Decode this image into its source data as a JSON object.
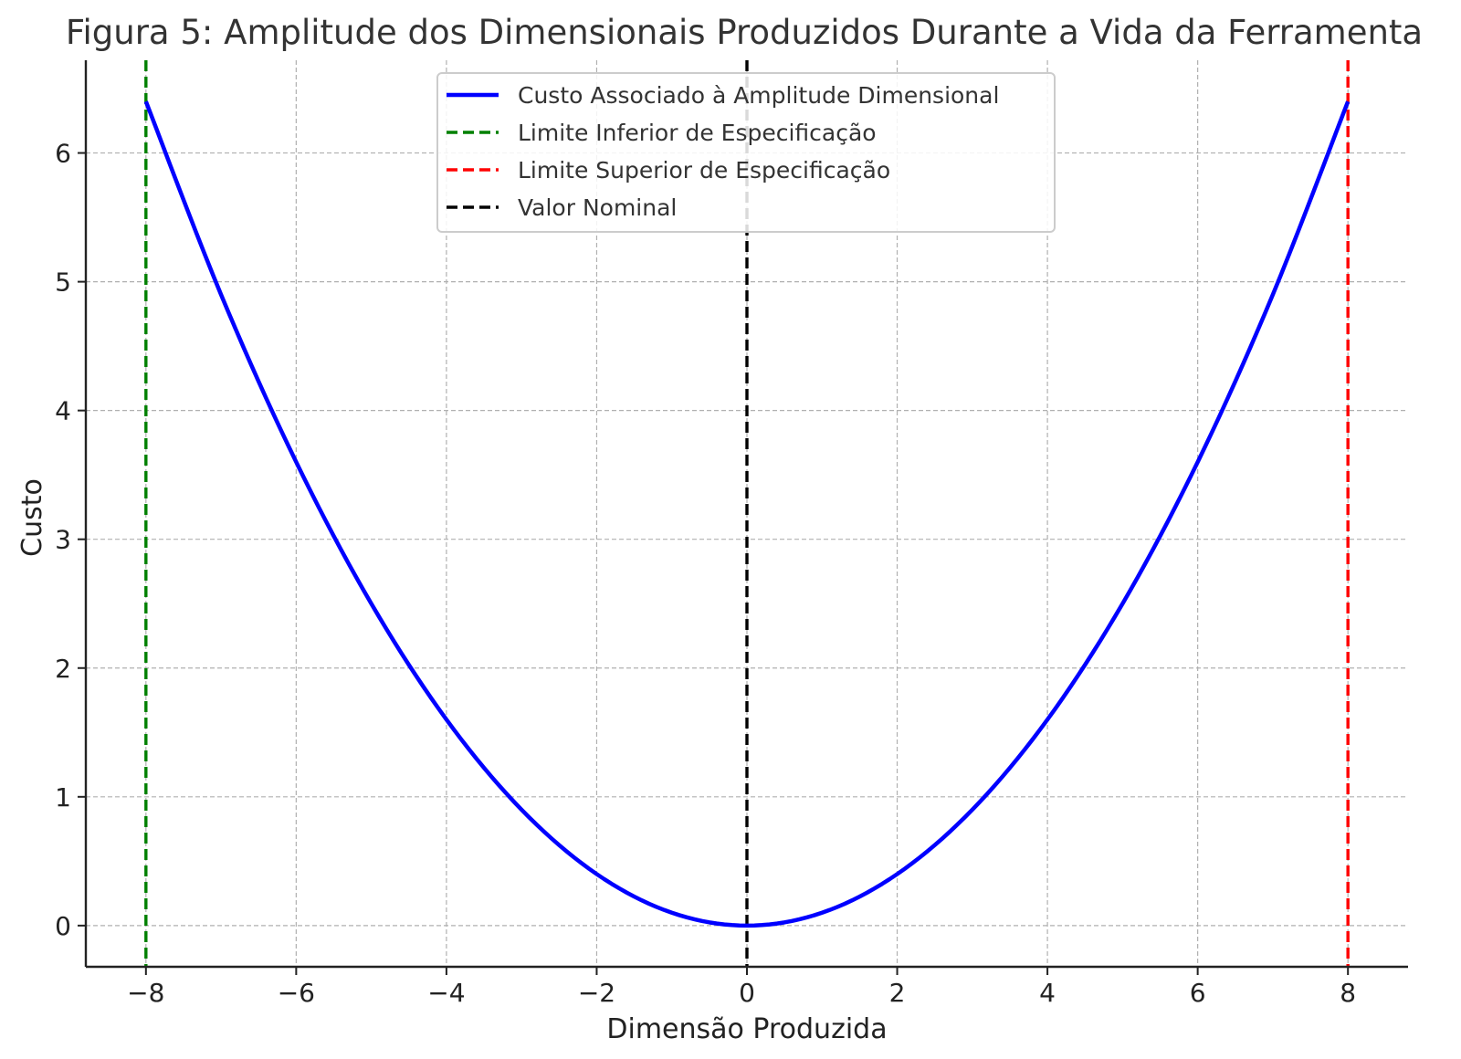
{
  "chart_data": {
    "type": "line",
    "title": "Figura 5: Amplitude dos Dimensionais Produzidos Durante a Vida da Ferramenta",
    "xlabel": "Dimensão Produzida",
    "ylabel": "Custo",
    "xlim": [
      -8.8,
      8.8
    ],
    "ylim": [
      -0.32,
      6.72
    ],
    "grid": true,
    "legend_position": "top-center",
    "x_ticks": [
      -8,
      -6,
      -4,
      -2,
      0,
      2,
      4,
      6,
      8
    ],
    "x_tick_labels": [
      "−8",
      "−6",
      "−4",
      "−2",
      "0",
      "2",
      "4",
      "6",
      "8"
    ],
    "y_ticks": [
      0,
      1,
      2,
      3,
      4,
      5,
      6
    ],
    "y_tick_labels": [
      "0",
      "1",
      "2",
      "3",
      "4",
      "5",
      "6"
    ],
    "series": [
      {
        "name": "Custo Associado à Amplitude Dimensional",
        "color": "#0000ff",
        "x": [
          -8,
          -7,
          -6,
          -5,
          -4,
          -3,
          -2,
          -1,
          0,
          1,
          2,
          3,
          4,
          5,
          6,
          7,
          8
        ],
        "y": [
          6.4,
          4.9,
          3.6,
          2.5,
          1.6,
          0.9,
          0.4,
          0.1,
          0,
          0.1,
          0.4,
          0.9,
          1.6,
          2.5,
          3.6,
          4.9,
          6.4
        ]
      }
    ],
    "reference_lines": [
      {
        "name": "Limite Inferior de Especificação",
        "x": -8,
        "color": "#008000"
      },
      {
        "name": "Limite Superior de Especificação",
        "x": 8,
        "color": "#ff0000"
      },
      {
        "name": "Valor Nominal",
        "x": 0,
        "color": "#000000"
      }
    ]
  }
}
